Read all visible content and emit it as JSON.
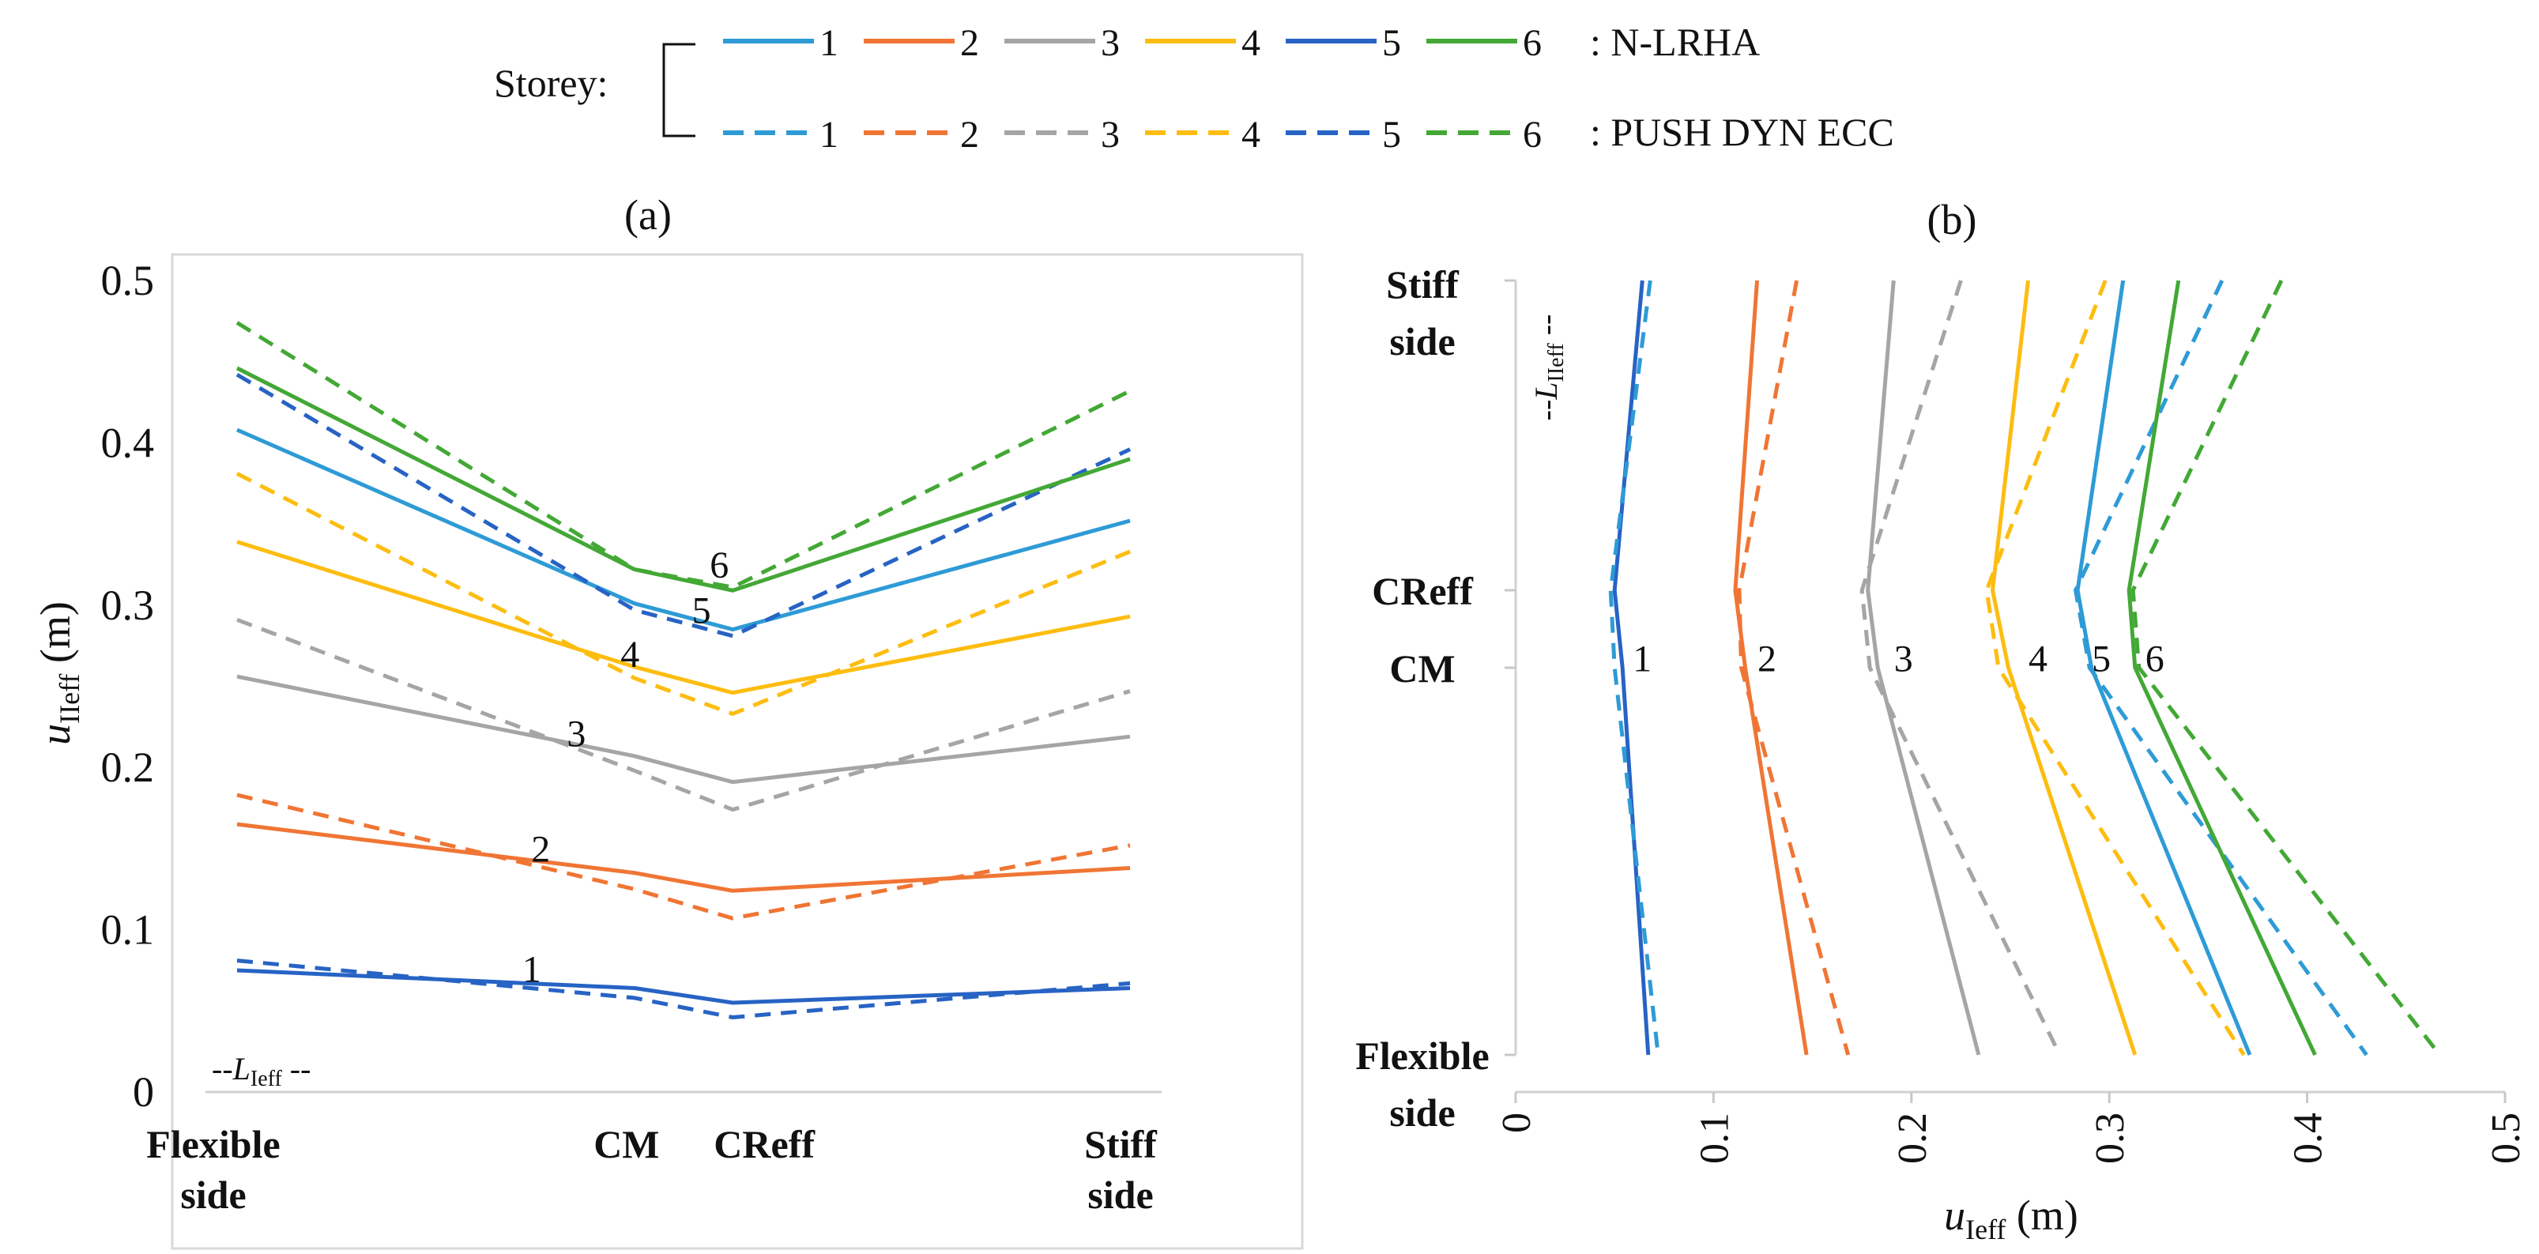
{
  "legend": {
    "storey_label": "Storey:",
    "storeys": [
      "1",
      "2",
      "3",
      "4",
      "5",
      "6"
    ],
    "solid_label": ": N-LRHA",
    "dashed_label": ": PUSH DYN ECC",
    "colors": [
      "#2e9bd6",
      "#f07534",
      "#a5a5a5",
      "#fdbd10",
      "#2763c4",
      "#43a835"
    ]
  },
  "chart_data": [
    {
      "type": "line",
      "panel_label": "(a)",
      "categories": [
        "Flexible side",
        "CM",
        "CReff",
        "Stiff side"
      ],
      "x_positions": [
        0,
        0.445,
        0.555,
        1
      ],
      "ylabel": "u",
      "ylabel_sub": "IIeff",
      "ylabel_unit": " (m)",
      "ylim": [
        0,
        0.5
      ],
      "yticks": [
        "0",
        "0.1",
        "0.2",
        "0.3",
        "0.4",
        "0.5"
      ],
      "ytick_values": [
        0,
        0.1,
        0.2,
        0.3,
        0.4,
        0.5
      ],
      "length_note_prefix": "--",
      "length_note": "L",
      "length_note_sub": "Ieff",
      "length_note_suffix": " --",
      "series": [
        {
          "name": "1",
          "style": "solid",
          "color": "#2763c4",
          "values": [
            0.075,
            0.064,
            0.055,
            0.064
          ]
        },
        {
          "name": "1",
          "style": "dashed",
          "color": "#2763c4",
          "values": [
            0.081,
            0.058,
            0.046,
            0.067
          ]
        },
        {
          "name": "2",
          "style": "solid",
          "color": "#f07534",
          "values": [
            0.165,
            0.135,
            0.124,
            0.138
          ]
        },
        {
          "name": "2",
          "style": "dashed",
          "color": "#f07534",
          "values": [
            0.183,
            0.125,
            0.107,
            0.152
          ]
        },
        {
          "name": "3",
          "style": "solid",
          "color": "#a5a5a5",
          "values": [
            0.256,
            0.207,
            0.191,
            0.219
          ]
        },
        {
          "name": "3",
          "style": "dashed",
          "color": "#a5a5a5",
          "values": [
            0.291,
            0.198,
            0.174,
            0.247
          ]
        },
        {
          "name": "4",
          "style": "solid",
          "color": "#fdbd10",
          "values": [
            0.339,
            0.262,
            0.246,
            0.293
          ]
        },
        {
          "name": "4",
          "style": "dashed",
          "color": "#fdbd10",
          "values": [
            0.381,
            0.255,
            0.233,
            0.333
          ]
        },
        {
          "name": "5",
          "style": "solid",
          "color": "#2e9bd6",
          "values": [
            0.408,
            0.301,
            0.285,
            0.352
          ]
        },
        {
          "name": "5",
          "style": "dashed",
          "color": "#2763c4",
          "values": [
            0.442,
            0.297,
            0.281,
            0.396
          ]
        },
        {
          "name": "6",
          "style": "solid",
          "color": "#43a835",
          "values": [
            0.446,
            0.322,
            0.309,
            0.39
          ]
        },
        {
          "name": "6",
          "style": "dashed",
          "color": "#43a835",
          "values": [
            0.474,
            0.322,
            0.311,
            0.432
          ]
        }
      ],
      "annotations": [
        {
          "text": "1",
          "x": 0.33,
          "y": 0.068
        },
        {
          "text": "2",
          "x": 0.34,
          "y": 0.142
        },
        {
          "text": "3",
          "x": 0.38,
          "y": 0.213
        },
        {
          "text": "4",
          "x": 0.44,
          "y": 0.262
        },
        {
          "text": "5",
          "x": 0.52,
          "y": 0.289
        },
        {
          "text": "6",
          "x": 0.54,
          "y": 0.317
        }
      ]
    },
    {
      "type": "line",
      "panel_label": "(b)",
      "xlabel": "u",
      "xlabel_sub": "Ieff",
      "xlabel_unit": " (m)",
      "xlim": [
        0,
        0.5
      ],
      "xticks": [
        "0",
        "0.1",
        "0.2",
        "0.3",
        "0.4",
        "0.5"
      ],
      "xtick_values": [
        0,
        0.1,
        0.2,
        0.3,
        0.4,
        0.5
      ],
      "y_levels": [
        "Stiff side",
        "CReff",
        "CM",
        "Flexible side"
      ],
      "y_positions": [
        1,
        0.6,
        0.5,
        0
      ],
      "length_note_prefix": "--",
      "length_note": "L",
      "length_note_sub": "IIeff",
      "length_note_suffix": " --",
      "series": [
        {
          "name": "1",
          "style": "solid",
          "color": "#2763c4",
          "values": [
            0.064,
            0.05,
            0.054,
            0.067
          ]
        },
        {
          "name": "1",
          "style": "dashed",
          "color": "#2e9bd6",
          "values": [
            0.068,
            0.048,
            0.05,
            0.072
          ]
        },
        {
          "name": "2",
          "style": "solid",
          "color": "#f07534",
          "values": [
            0.122,
            0.111,
            0.116,
            0.147
          ]
        },
        {
          "name": "2",
          "style": "dashed",
          "color": "#f07534",
          "values": [
            0.142,
            0.113,
            0.114,
            0.168
          ]
        },
        {
          "name": "3",
          "style": "solid",
          "color": "#a5a5a5",
          "values": [
            0.191,
            0.178,
            0.183,
            0.234
          ]
        },
        {
          "name": "3",
          "style": "dashed",
          "color": "#a5a5a5",
          "values": [
            0.225,
            0.175,
            0.179,
            0.275
          ]
        },
        {
          "name": "4",
          "style": "solid",
          "color": "#fdbd10",
          "values": [
            0.259,
            0.241,
            0.249,
            0.313
          ]
        },
        {
          "name": "4",
          "style": "dashed",
          "color": "#fdbd10",
          "values": [
            0.298,
            0.238,
            0.244,
            0.368
          ]
        },
        {
          "name": "5",
          "style": "solid",
          "color": "#2e9bd6",
          "values": [
            0.307,
            0.284,
            0.291,
            0.371
          ]
        },
        {
          "name": "5",
          "style": "dashed",
          "color": "#2e9bd6",
          "values": [
            0.357,
            0.283,
            0.29,
            0.43
          ]
        },
        {
          "name": "6",
          "style": "solid",
          "color": "#43a835",
          "values": [
            0.335,
            0.31,
            0.313,
            0.404
          ]
        },
        {
          "name": "6",
          "style": "dashed",
          "color": "#43a835",
          "values": [
            0.387,
            0.312,
            0.315,
            0.467
          ]
        }
      ],
      "annotations": [
        {
          "text": "1",
          "x": 0.064,
          "y": 0.52
        },
        {
          "text": "2",
          "x": 0.127,
          "y": 0.52
        },
        {
          "text": "3",
          "x": 0.196,
          "y": 0.52
        },
        {
          "text": "4",
          "x": 0.264,
          "y": 0.52
        },
        {
          "text": "5",
          "x": 0.296,
          "y": 0.52
        },
        {
          "text": "6",
          "x": 0.323,
          "y": 0.52
        }
      ]
    }
  ]
}
